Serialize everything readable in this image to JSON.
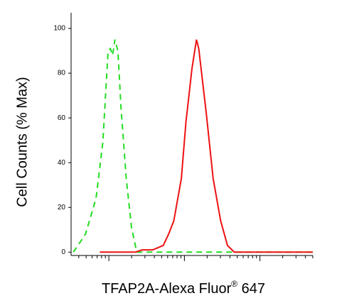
{
  "chart_data": {
    "type": "line",
    "ylabel": "Cell Counts (% Max)",
    "xlabel": "TFAP2A-Alexa Fluor",
    "xlabel_mark": "®",
    "xlabel_tail": " 647",
    "xlim": [
      0,
      3.2
    ],
    "ylim": [
      -1.5,
      107
    ],
    "xticks": [
      0.5,
      1.5,
      2.5
    ],
    "yticks": [
      0,
      20,
      40,
      60,
      80,
      100
    ],
    "series": [
      {
        "color": "#22dd22",
        "dash": true,
        "x": [
          0.03,
          0.19,
          0.33,
          0.42,
          0.49,
          0.52,
          0.55,
          0.58,
          0.62,
          0.66,
          0.73,
          0.8,
          0.87,
          3.2
        ],
        "values": [
          0,
          8,
          24,
          49,
          90,
          91,
          88,
          95,
          90,
          65,
          33,
          11,
          0,
          0
        ]
      },
      {
        "color": "#ee1111",
        "dash": false,
        "x": [
          0.38,
          0.85,
          0.94,
          1.08,
          1.22,
          1.29,
          1.36,
          1.46,
          1.52,
          1.6,
          1.66,
          1.69,
          1.79,
          1.88,
          1.98,
          2.07,
          2.16,
          3.2
        ],
        "values": [
          0,
          0,
          1,
          1,
          3,
          8,
          14,
          33,
          58,
          82,
          95,
          91,
          62,
          33,
          14,
          3,
          0,
          0
        ]
      }
    ]
  }
}
